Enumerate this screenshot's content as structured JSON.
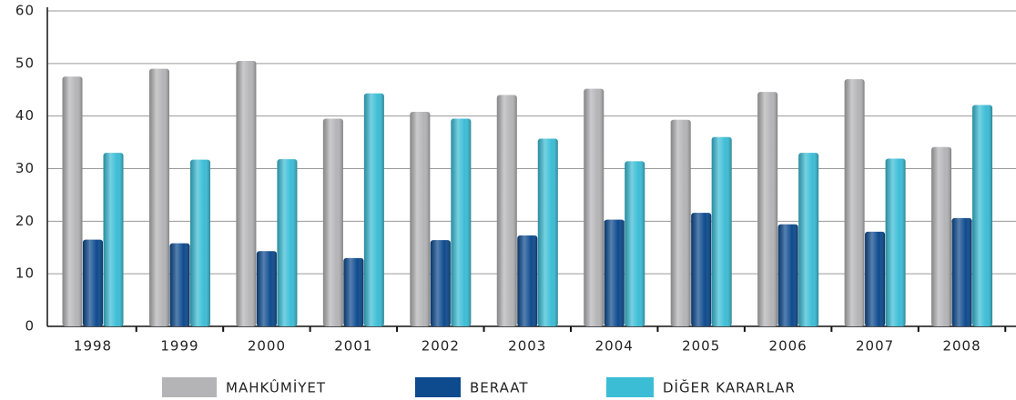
{
  "chart_data": {
    "type": "bar",
    "categories": [
      "1998",
      "1999",
      "2000",
      "2001",
      "2002",
      "2003",
      "2004",
      "2005",
      "2006",
      "2007",
      "2008"
    ],
    "series": [
      {
        "name": "MAHKÛMİYET",
        "color": "#b4b4b6",
        "values": [
          47.5,
          49,
          50.5,
          39.5,
          40.8,
          44,
          45.2,
          39.3,
          44.6,
          47,
          34.1
        ]
      },
      {
        "name": "BERAAT",
        "color": "#0d4a8e",
        "values": [
          16.5,
          15.8,
          14.3,
          13,
          16.4,
          17.3,
          20.3,
          21.6,
          19.4,
          18,
          20.6
        ]
      },
      {
        "name": "DİĞER KARARLAR",
        "color": "#3bbdd6",
        "values": [
          33,
          31.7,
          31.8,
          44.3,
          39.5,
          35.7,
          31.4,
          36,
          33,
          31.9,
          42.1
        ]
      }
    ],
    "ylim": [
      0,
      60
    ],
    "yticks": [
      0,
      10,
      20,
      30,
      40,
      50,
      60
    ],
    "grid": true
  }
}
